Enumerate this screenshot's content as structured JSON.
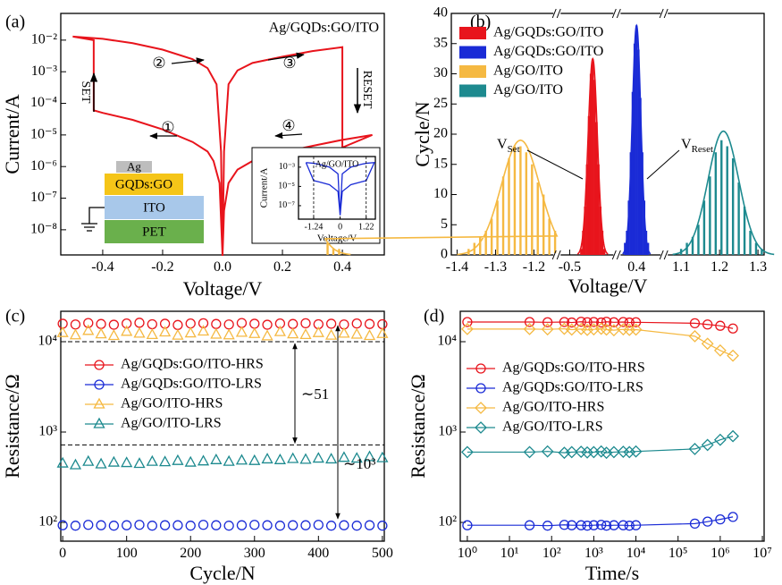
{
  "chart_data": [
    {
      "type": "line",
      "panel": "(a)",
      "title": "Ag/GQDs:GO/ITO",
      "x_label": "Voltage/V",
      "y_label": "Current/A",
      "xlim": [
        -0.54,
        0.54
      ],
      "ylim": [
        1.6e-09,
        0.07
      ],
      "y_log": true,
      "xticks": [
        -0.4,
        -0.2,
        {
          "value": 0,
          "label": "0.0"
        },
        0.2,
        0.4
      ],
      "yticks": [
        {
          "value": 1e-08,
          "label": "10⁻⁸"
        },
        {
          "value": 1e-07,
          "label": "10⁻⁷"
        },
        {
          "value": 1e-06,
          "label": "10⁻⁶"
        },
        {
          "value": 1e-05,
          "label": "10⁻⁵"
        },
        {
          "value": 0.0001,
          "label": "10⁻⁴"
        },
        {
          "value": 0.001,
          "label": "10⁻³"
        },
        {
          "value": 0.01,
          "label": "10⁻²"
        }
      ],
      "color": "#e8141c",
      "x": [
        0,
        -0.01,
        -0.03,
        -0.05,
        -0.1,
        -0.2,
        -0.3,
        -0.4,
        -0.43,
        -0.43,
        -0.5,
        -0.4,
        -0.3,
        -0.2,
        -0.1,
        -0.05,
        -0.02,
        -0.005,
        0,
        0.005,
        0.02,
        0.05,
        0.1,
        0.2,
        0.3,
        0.4,
        0.4,
        0.5,
        0.4,
        0.3,
        0.2,
        0.1,
        0.05,
        0.02,
        0.005,
        0
      ],
      "values": [
        1.5e-09,
        3e-07,
        1.5e-06,
        3e-06,
        6e-06,
        1.5e-05,
        3e-05,
        5e-05,
        6e-05,
        0.01,
        0.013,
        0.011,
        0.008,
        0.005,
        0.0025,
        0.0013,
        0.0004,
        3e-06,
        1.5e-09,
        3e-06,
        0.0004,
        0.0011,
        0.0019,
        0.003,
        0.0045,
        0.006,
        4e-06,
        1e-05,
        7e-06,
        4.5e-06,
        2.8e-06,
        1.5e-06,
        8e-07,
        3e-07,
        4e-08,
        1.5e-09
      ],
      "annotations": {
        "set": "SET",
        "reset": "RESET",
        "steps": [
          "①",
          "②",
          "③",
          "④"
        ]
      },
      "layers": [
        "Ag",
        "GQDs:GO",
        "ITO",
        "PET"
      ]
    },
    {
      "type": "line",
      "title": "Ag/GO/ITO",
      "x_label": "Voltage/V",
      "y_label": "Current/A",
      "xlim": [
        -1.95,
        1.65
      ],
      "ylim": [
        4e-09,
        0.0126
      ],
      "y_log": true,
      "xticks": [
        -1.24,
        0,
        1.22
      ],
      "yticks": [
        {
          "value": 1e-07,
          "label": "10⁻⁷"
        },
        {
          "value": 1e-05,
          "label": "10⁻⁵"
        },
        {
          "value": 0.001,
          "label": "10⁻³"
        }
      ],
      "color": "#1a2bd6",
      "x": [
        -1.6,
        -1.24,
        -1,
        -0.5,
        -0.1,
        0,
        0.1,
        0.5,
        1,
        1.22,
        1.6,
        1.22,
        1,
        0.5,
        0.1,
        0,
        -0.1,
        -0.5,
        -1,
        -1.24,
        -1.6
      ],
      "values": [
        0.003,
        0.0025,
        0.002,
        0.001,
        0.0002,
        1e-08,
        0.0002,
        0.001,
        0.002,
        0.0025,
        0.003,
        4e-05,
        3e-05,
        1.5e-05,
        3e-06,
        1e-08,
        3e-06,
        1.5e-05,
        3e-05,
        4e-05,
        0.003
      ]
    },
    {
      "type": "bar",
      "panel": "(b)",
      "x_label": "Voltage/V",
      "y_label": "Cycle/N",
      "x_segments": [
        [
          -1.415,
          -1.14
        ],
        [
          -0.533,
          -0.377
        ],
        [
          0.349,
          0.472
        ],
        [
          1.056,
          1.316
        ]
      ],
      "ylim": [
        0,
        40
      ],
      "yticks": [
        0,
        5,
        10,
        15,
        20,
        25,
        30,
        35,
        40
      ],
      "xticks": [
        -1.4,
        -1.3,
        -1.2,
        -0.5,
        0.4,
        1.1,
        1.2,
        1.3
      ],
      "legend": "upper-left",
      "series": [
        {
          "name": "Ag/GQDs:GO/ITO",
          "color": "#e8141c",
          "x": [
            -0.47,
            -0.465,
            -0.46,
            -0.455,
            -0.45,
            -0.445,
            -0.44,
            -0.435,
            -0.43,
            -0.425,
            -0.42,
            -0.415,
            -0.41
          ],
          "values": [
            1,
            4,
            8,
            15,
            23,
            30,
            32,
            29,
            22,
            15,
            8,
            4,
            1
          ],
          "fit": {
            "mean": -0.44,
            "sigma": 0.012,
            "peak": 32.5
          }
        },
        {
          "name": "Ag/GQDs:GO/ITO",
          "color": "#1a2bd6",
          "x": [
            0.37,
            0.375,
            0.38,
            0.385,
            0.39,
            0.395,
            0.4,
            0.405,
            0.41,
            0.415,
            0.42,
            0.425,
            0.43
          ],
          "values": [
            2,
            4,
            9,
            17,
            27,
            35,
            38,
            34,
            26,
            17,
            9,
            4,
            2
          ],
          "fit": {
            "mean": 0.4,
            "sigma": 0.011,
            "peak": 38
          }
        },
        {
          "name": "Ag/GO/ITO",
          "color": "#f5b942",
          "x": [
            -1.37,
            -1.355,
            -1.34,
            -1.325,
            -1.31,
            -1.295,
            -1.28,
            -1.265,
            -1.25,
            -1.235,
            -1.22,
            -1.205,
            -1.19,
            -1.175,
            -1.16,
            -1.145,
            -1.13,
            -1.115,
            -1.1
          ],
          "values": [
            1,
            2,
            3,
            4,
            6,
            9,
            13,
            16,
            18,
            18,
            17,
            15,
            12,
            10,
            6,
            4,
            2,
            1,
            1
          ],
          "fit": {
            "mean": -1.235,
            "sigma": 0.05,
            "peak": 19
          }
        },
        {
          "name": "Ag/GO/ITO",
          "color": "#1d8a8f",
          "x": [
            1.1,
            1.115,
            1.13,
            1.145,
            1.16,
            1.175,
            1.19,
            1.205,
            1.22,
            1.235,
            1.25,
            1.265,
            1.28,
            1.295,
            1.31
          ],
          "values": [
            1,
            2,
            3,
            5,
            9,
            13,
            17,
            19,
            18,
            16,
            12,
            8,
            4,
            2,
            1
          ],
          "fit": {
            "mean": 1.21,
            "sigma": 0.04,
            "peak": 20.5
          }
        }
      ],
      "annotations": {
        "v_set": {
          "base": "V",
          "sub": "Set"
        },
        "v_reset": {
          "base": "V",
          "sub": "Reset"
        }
      }
    },
    {
      "type": "scatter",
      "panel": "(c)",
      "x_label": "Cycle/N",
      "y_label": "Resistance/Ω",
      "xlim": [
        -3,
        503
      ],
      "ylim": [
        62,
        21700
      ],
      "y_log": true,
      "xticks": [
        0,
        100,
        200,
        300,
        400,
        500
      ],
      "yticks": [
        {
          "value": 100,
          "label": "10²"
        },
        {
          "value": 1000,
          "label": "10³"
        },
        {
          "value": 10000,
          "label": "10⁴"
        }
      ],
      "legend": "middle-left",
      "x": [
        0,
        20,
        40,
        60,
        80,
        100,
        120,
        140,
        160,
        180,
        200,
        220,
        240,
        260,
        280,
        300,
        320,
        340,
        360,
        380,
        400,
        420,
        440,
        460,
        480,
        500
      ],
      "series": [
        {
          "name": "Ag/GQDs:GO/ITO-HRS",
          "color": "#e8141c",
          "marker": "circle",
          "values": [
            15800,
            15500,
            16100,
            15700,
            15400,
            15900,
            16200,
            15600,
            15800,
            15300,
            15900,
            16000,
            15700,
            15500,
            16100,
            15800,
            15400,
            15900,
            15700,
            16000,
            15600,
            15800,
            15500,
            15900,
            15700,
            15600
          ]
        },
        {
          "name": "Ag/GQDs:GO/ITO-LRS",
          "color": "#1a2bd6",
          "marker": "circle",
          "values": [
            93,
            92,
            94,
            93,
            92,
            93,
            94,
            92,
            93,
            93,
            92,
            94,
            93,
            92,
            93,
            94,
            93,
            92,
            93,
            93,
            94,
            92,
            93,
            92,
            93,
            92
          ]
        },
        {
          "name": "Ag/GO/ITO-HRS",
          "color": "#f5b942",
          "marker": "triangle",
          "values": [
            12500,
            11800,
            13200,
            12100,
            11600,
            12900,
            12300,
            11900,
            12700,
            11700,
            12400,
            13000,
            12000,
            11800,
            12600,
            12200,
            11500,
            12800,
            12100,
            11900,
            12500,
            11700,
            12300,
            12000,
            11600,
            12200
          ]
        },
        {
          "name": "Ag/GO/ITO-LRS",
          "color": "#1d8a8f",
          "marker": "triangle",
          "values": [
            450,
            430,
            470,
            440,
            460,
            455,
            445,
            470,
            465,
            480,
            460,
            475,
            490,
            470,
            485,
            480,
            500,
            490,
            505,
            495,
            510,
            500,
            520,
            510,
            530,
            515
          ]
        }
      ],
      "ref_lines": [
        10000,
        720
      ],
      "annotations": [
        "∼51",
        "∼10³"
      ]
    },
    {
      "type": "line",
      "panel": "(d)",
      "x_label": "Time/s",
      "y_label": "Resistance/Ω",
      "xlim": [
        0.68,
        11000000
      ],
      "x_log": true,
      "ylim": [
        62,
        21700
      ],
      "y_log": true,
      "xticks": [
        {
          "value": 1,
          "label": "10⁰"
        },
        {
          "value": 10,
          "label": "10¹"
        },
        {
          "value": 100,
          "label": "10²"
        },
        {
          "value": 1000,
          "label": "10³"
        },
        {
          "value": 10000,
          "label": "10⁴"
        },
        {
          "value": 100000,
          "label": "10⁵"
        },
        {
          "value": 1000000,
          "label": "10⁶"
        },
        {
          "value": 10000000,
          "label": "10⁷"
        }
      ],
      "yticks": [
        {
          "value": 100,
          "label": "10²"
        },
        {
          "value": 1000,
          "label": "10³"
        },
        {
          "value": 10000,
          "label": "10⁴"
        }
      ],
      "legend": "middle-left",
      "x": [
        1,
        30,
        80,
        200,
        300,
        500,
        700,
        1000,
        1500,
        2000,
        3000,
        5000,
        7000,
        10000,
        250000,
        500000,
        1000000,
        2000000
      ],
      "series": [
        {
          "name": "Ag/GQDs:GO/ITO-HRS",
          "color": "#e8141c",
          "marker": "circle",
          "values": [
            16500,
            16500,
            16400,
            16500,
            16300,
            16600,
            16400,
            16500,
            16300,
            16600,
            16400,
            16500,
            16300,
            16400,
            16000,
            15500,
            15000,
            14000
          ]
        },
        {
          "name": "Ag/GQDs:GO/ITO-LRS",
          "color": "#1a2bd6",
          "marker": "circle",
          "values": [
            93,
            93,
            92,
            94,
            93,
            93,
            92,
            93,
            94,
            92,
            93,
            93,
            92,
            93,
            97,
            102,
            108,
            115
          ]
        },
        {
          "name": "Ag/GO/ITO-HRS",
          "color": "#f5b942",
          "marker": "diamond",
          "values": [
            13800,
            13800,
            13700,
            13900,
            13600,
            13800,
            13500,
            13700,
            13900,
            13600,
            13400,
            13700,
            13500,
            13600,
            11500,
            9500,
            8000,
            7000
          ]
        },
        {
          "name": "Ag/GO/ITO-LRS",
          "color": "#1d8a8f",
          "marker": "diamond",
          "values": [
            600,
            600,
            610,
            590,
            600,
            605,
            595,
            600,
            610,
            590,
            600,
            605,
            600,
            610,
            650,
            720,
            820,
            900
          ]
        }
      ]
    }
  ]
}
